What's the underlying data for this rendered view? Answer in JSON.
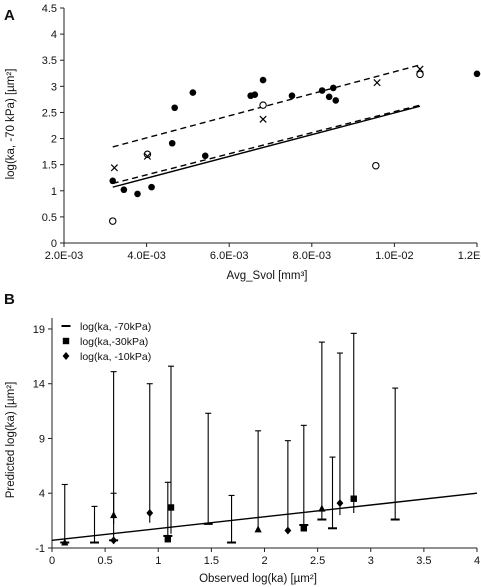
{
  "panels": [
    {
      "label": "A"
    },
    {
      "label": "B"
    }
  ],
  "chart_data": [
    {
      "type": "scatter",
      "xlabel": "Avg_Svol [mm³]",
      "ylabel": "log(ka, -70 kPa) [µm²]",
      "xlim": [
        0.002,
        0.012
      ],
      "ylim": [
        0,
        4.5
      ],
      "x_ticks": [
        0.002,
        0.004,
        0.006,
        0.008,
        0.01,
        0.012
      ],
      "x_tick_labels": [
        "2.0E-03",
        "4.0E-03",
        "6.0E-03",
        "8.0E-03",
        "1.0E-02",
        "1.2E-02"
      ],
      "y_ticks": [
        0,
        0.5,
        1,
        1.5,
        2,
        2.5,
        3,
        3.5,
        4,
        4.5
      ],
      "y_tick_labels": [
        "0",
        "0.5",
        "1",
        "1.5",
        "2",
        "2.5",
        "3",
        "3.5",
        "4",
        "4.5"
      ],
      "grid": false,
      "legend": "none",
      "series": [
        {
          "marker": "filled-circle",
          "points": [
            [
              0.00318,
              1.19
            ],
            [
              0.00345,
              1.02
            ],
            [
              0.00378,
              0.94
            ],
            [
              0.00412,
              1.07
            ],
            [
              0.00462,
              1.91
            ],
            [
              0.00468,
              2.59
            ],
            [
              0.00512,
              2.88
            ],
            [
              0.00542,
              1.67
            ],
            [
              0.00652,
              2.82
            ],
            [
              0.00662,
              2.84
            ],
            [
              0.00682,
              3.12
            ],
            [
              0.00752,
              2.82
            ],
            [
              0.00825,
              2.92
            ],
            [
              0.00842,
              2.8
            ],
            [
              0.00852,
              2.97
            ],
            [
              0.00858,
              2.73
            ],
            [
              0.012,
              3.24
            ]
          ]
        },
        {
          "marker": "open-circle",
          "points": [
            [
              0.00318,
              0.42
            ],
            [
              0.00402,
              1.7
            ],
            [
              0.00682,
              2.64
            ],
            [
              0.00955,
              1.48
            ],
            [
              0.01062,
              3.23
            ]
          ]
        },
        {
          "marker": "x",
          "points": [
            [
              0.00322,
              1.44
            ],
            [
              0.00402,
              1.66
            ],
            [
              0.00682,
              2.37
            ],
            [
              0.00958,
              3.07
            ],
            [
              0.01062,
              3.33
            ]
          ]
        }
      ],
      "lines": [
        {
          "style": "solid",
          "points": [
            [
              0.00318,
              1.07
            ],
            [
              0.01062,
              2.62
            ]
          ]
        },
        {
          "style": "dashed",
          "points": [
            [
              0.00318,
              1.84
            ],
            [
              0.01062,
              3.41
            ]
          ]
        },
        {
          "style": "dashed",
          "points": [
            [
              0.00318,
              1.14
            ],
            [
              0.01062,
              2.64
            ]
          ]
        }
      ]
    },
    {
      "type": "scatter",
      "xlabel": "Observed log(ka) [µm²]",
      "ylabel": "Predicted log(ka) [µm²]",
      "xlim": [
        0,
        4
      ],
      "ylim": [
        -1,
        20
      ],
      "x_ticks": [
        0,
        0.5,
        1,
        1.5,
        2,
        2.5,
        3,
        3.5,
        4
      ],
      "x_tick_labels": [
        "0",
        "0.5",
        "1",
        "1.5",
        "2",
        "2.5",
        "3",
        "3.5",
        "4"
      ],
      "y_ticks": [
        -1,
        4,
        9,
        14,
        19
      ],
      "y_tick_labels": [
        "-1",
        "4",
        "9",
        "14",
        "19"
      ],
      "grid": false,
      "legend": "top-left",
      "legend_entries": [
        {
          "marker": "dash",
          "label": "log(ka, -70kPa)"
        },
        {
          "marker": "square",
          "label": "log(ka,-30kPa)"
        },
        {
          "marker": "diamond",
          "label": "log(ka, -10kPa)"
        }
      ],
      "reference_line": [
        [
          0,
          -0.3
        ],
        [
          4,
          4.0
        ]
      ],
      "error_bars": [
        {
          "x": 0.12,
          "low": -0.5,
          "high": 4.8
        },
        {
          "x": 0.4,
          "low": -0.5,
          "high": 2.8
        },
        {
          "x": 0.58,
          "low": -0.3,
          "high": 4.0
        },
        {
          "x": 0.58,
          "low": 1.2,
          "high": 15.1
        },
        {
          "x": 0.92,
          "low": 1.3,
          "high": 14.0
        },
        {
          "x": 1.09,
          "low": 0.1,
          "high": 5.0
        },
        {
          "x": 1.12,
          "low": 0.3,
          "high": 15.6
        },
        {
          "x": 1.47,
          "low": 1.2,
          "high": 11.3
        },
        {
          "x": 1.69,
          "low": -0.5,
          "high": 3.8
        },
        {
          "x": 1.94,
          "low": 0.5,
          "high": 9.7
        },
        {
          "x": 2.22,
          "low": 0.6,
          "high": 8.8
        },
        {
          "x": 2.37,
          "low": 1.1,
          "high": 10.2
        },
        {
          "x": 2.54,
          "low": 1.6,
          "high": 17.8
        },
        {
          "x": 2.64,
          "low": 0.8,
          "high": 7.3
        },
        {
          "x": 2.71,
          "low": 2.0,
          "high": 16.8
        },
        {
          "x": 2.84,
          "low": 2.2,
          "high": 18.6
        },
        {
          "x": 3.23,
          "low": 1.6,
          "high": 13.6
        }
      ],
      "series": [
        {
          "name": "log(ka, -70kPa)",
          "marker": "dash",
          "points": [
            [
              0.12,
              -0.5
            ],
            [
              0.4,
              -0.5
            ],
            [
              0.58,
              -0.3
            ],
            [
              1.09,
              0.1
            ],
            [
              1.47,
              1.2
            ],
            [
              1.69,
              -0.5
            ],
            [
              2.37,
              1.1
            ],
            [
              2.54,
              1.6
            ],
            [
              2.64,
              0.8
            ],
            [
              3.23,
              1.6
            ]
          ]
        },
        {
          "name": "log(ka,-30kPa)",
          "marker": "square",
          "points": [
            [
              1.09,
              -0.2
            ],
            [
              1.12,
              2.7
            ],
            [
              2.37,
              0.8
            ],
            [
              2.84,
              3.5
            ]
          ]
        },
        {
          "name": "log(ka, -10kPa)",
          "marker": "diamond",
          "points": [
            [
              0.58,
              -0.3
            ],
            [
              0.92,
              2.2
            ],
            [
              2.22,
              0.6
            ],
            [
              2.71,
              3.1
            ]
          ]
        },
        {
          "marker": "triangle",
          "points": [
            [
              0.12,
              -0.5
            ],
            [
              0.58,
              2.0
            ],
            [
              1.94,
              0.7
            ],
            [
              2.54,
              2.6
            ]
          ]
        }
      ]
    }
  ]
}
